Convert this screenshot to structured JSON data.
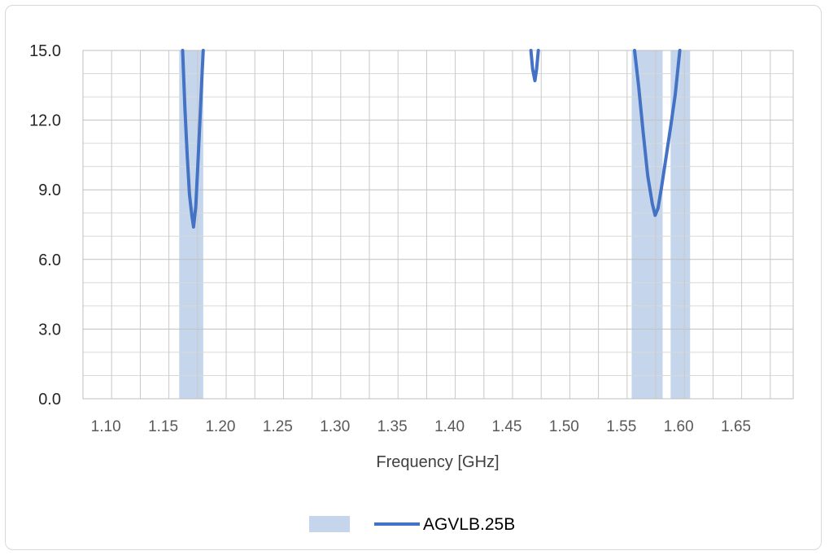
{
  "chart_data": {
    "type": "line",
    "title": "",
    "xlabel": "Frequency [GHz]",
    "ylabel": "",
    "xlim": [
      1.08,
      1.7
    ],
    "ylim": [
      0,
      15
    ],
    "x_ticks": [
      "1.10",
      "1.15",
      "1.20",
      "1.25",
      "1.30",
      "1.35",
      "1.40",
      "1.45",
      "1.50",
      "1.55",
      "1.60",
      "1.65"
    ],
    "x_tick_values": [
      1.1,
      1.15,
      1.2,
      1.25,
      1.3,
      1.35,
      1.4,
      1.45,
      1.5,
      1.55,
      1.6,
      1.65
    ],
    "y_ticks": [
      "0.0",
      "3.0",
      "6.0",
      "9.0",
      "12.0",
      "15.0"
    ],
    "y_tick_values": [
      0,
      3,
      6,
      9,
      12,
      15
    ],
    "y_minor_step": 1.0,
    "x_minor_step": 0.025,
    "grid": true,
    "legend_position": "bottom",
    "bands": {
      "name": "",
      "color": "#c5d6ec",
      "ranges": [
        [
          1.164,
          1.185
        ],
        [
          1.559,
          1.586
        ],
        [
          1.593,
          1.61
        ]
      ]
    },
    "series": [
      {
        "name": "AGVLB.25B",
        "color": "#4472c4",
        "segments": [
          [
            [
              1.167,
              15.0
            ],
            [
              1.169,
              12.5
            ],
            [
              1.171,
              10.5
            ],
            [
              1.173,
              8.8
            ],
            [
              1.175,
              7.9
            ],
            [
              1.1765,
              7.4
            ],
            [
              1.1785,
              8.3
            ],
            [
              1.1805,
              10.3
            ],
            [
              1.1825,
              12.4
            ],
            [
              1.184,
              14.0
            ],
            [
              1.185,
              15.0
            ]
          ],
          [
            [
              1.471,
              15.0
            ],
            [
              1.4725,
              14.2
            ],
            [
              1.4745,
              13.7
            ],
            [
              1.476,
              14.2
            ],
            [
              1.4775,
              15.0
            ]
          ],
          [
            [
              1.5615,
              15.0
            ],
            [
              1.565,
              13.5
            ],
            [
              1.569,
              11.5
            ],
            [
              1.573,
              9.6
            ],
            [
              1.577,
              8.4
            ],
            [
              1.5795,
              7.9
            ],
            [
              1.582,
              8.2
            ],
            [
              1.585,
              9.1
            ],
            [
              1.589,
              10.4
            ],
            [
              1.593,
              11.7
            ],
            [
              1.597,
              13.1
            ],
            [
              1.601,
              15.0
            ]
          ]
        ]
      }
    ]
  }
}
